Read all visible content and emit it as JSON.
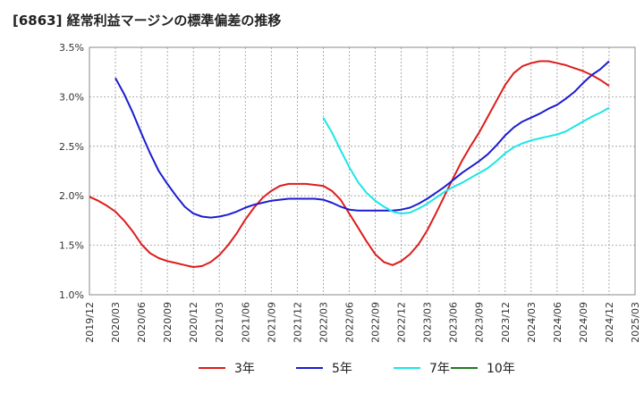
{
  "title": "[6863]  経常利益マージンの標準偏差の推移",
  "chart_data": {
    "type": "line",
    "title": "[6863]  経常利益マージンの標準偏差の推移",
    "xlabel": "",
    "ylabel": "",
    "ylim": [
      1.0,
      3.5
    ],
    "yticks": [
      "1.0%",
      "1.5%",
      "2.0%",
      "2.5%",
      "3.0%",
      "3.5%"
    ],
    "ytick_values": [
      1.0,
      1.5,
      2.0,
      2.5,
      3.0,
      3.5
    ],
    "xticks": [
      "2019/12",
      "2020/03",
      "2020/06",
      "2020/09",
      "2020/12",
      "2021/03",
      "2021/06",
      "2021/09",
      "2021/12",
      "2022/03",
      "2022/06",
      "2022/09",
      "2022/12",
      "2023/03",
      "2023/06",
      "2023/09",
      "2023/12",
      "2024/03",
      "2024/06",
      "2024/09",
      "2024/12",
      "2025/03"
    ],
    "grid": true,
    "legend_position": "bottom",
    "series": [
      {
        "name": "3年",
        "color": "#dd1c1c",
        "x": [
          "2019/12",
          "2020/01",
          "2020/02",
          "2020/03",
          "2020/04",
          "2020/05",
          "2020/06",
          "2020/07",
          "2020/08",
          "2020/09",
          "2020/10",
          "2020/11",
          "2020/12",
          "2021/01",
          "2021/02",
          "2021/03",
          "2021/04",
          "2021/05",
          "2021/06",
          "2021/07",
          "2021/08",
          "2021/09",
          "2021/10",
          "2021/11",
          "2021/12",
          "2022/01",
          "2022/02",
          "2022/03",
          "2022/04",
          "2022/05",
          "2022/06",
          "2022/07",
          "2022/08",
          "2022/09",
          "2022/10",
          "2022/11",
          "2022/12",
          "2023/01",
          "2023/02",
          "2023/03",
          "2023/04",
          "2023/05",
          "2023/06",
          "2023/07",
          "2023/08",
          "2023/09",
          "2023/10",
          "2023/11",
          "2023/12",
          "2024/01",
          "2024/02",
          "2024/03",
          "2024/04",
          "2024/05",
          "2024/06",
          "2024/07",
          "2024/08",
          "2024/09",
          "2024/10",
          "2024/11",
          "2024/12"
        ],
        "values": [
          1.99,
          1.95,
          1.9,
          1.84,
          1.75,
          1.64,
          1.51,
          1.42,
          1.37,
          1.34,
          1.32,
          1.3,
          1.28,
          1.29,
          1.33,
          1.4,
          1.5,
          1.62,
          1.76,
          1.88,
          1.98,
          2.05,
          2.1,
          2.12,
          2.12,
          2.12,
          2.11,
          2.1,
          2.05,
          1.96,
          1.82,
          1.68,
          1.54,
          1.41,
          1.33,
          1.3,
          1.34,
          1.41,
          1.51,
          1.65,
          1.82,
          2.0,
          2.18,
          2.35,
          2.5,
          2.64,
          2.8,
          2.96,
          3.12,
          3.24,
          3.31,
          3.34,
          3.36,
          3.36,
          3.34,
          3.32,
          3.29,
          3.26,
          3.22,
          3.17,
          3.11
        ]
      },
      {
        "name": "5年",
        "color": "#1c1cd0",
        "x": [
          "2020/03",
          "2020/04",
          "2020/05",
          "2020/06",
          "2020/07",
          "2020/08",
          "2020/09",
          "2020/10",
          "2020/11",
          "2020/12",
          "2021/01",
          "2021/02",
          "2021/03",
          "2021/04",
          "2021/05",
          "2021/06",
          "2021/07",
          "2021/08",
          "2021/09",
          "2021/10",
          "2021/11",
          "2021/12",
          "2022/01",
          "2022/02",
          "2022/03",
          "2022/04",
          "2022/05",
          "2022/06",
          "2022/07",
          "2022/08",
          "2022/09",
          "2022/10",
          "2022/11",
          "2022/12",
          "2023/01",
          "2023/02",
          "2023/03",
          "2023/04",
          "2023/05",
          "2023/06",
          "2023/07",
          "2023/08",
          "2023/09",
          "2023/10",
          "2023/11",
          "2023/12",
          "2024/01",
          "2024/02",
          "2024/03",
          "2024/04",
          "2024/05",
          "2024/06",
          "2024/07",
          "2024/08",
          "2024/09",
          "2024/10",
          "2024/11",
          "2024/12"
        ],
        "values": [
          3.19,
          3.03,
          2.84,
          2.63,
          2.43,
          2.25,
          2.12,
          2.0,
          1.89,
          1.82,
          1.79,
          1.78,
          1.79,
          1.81,
          1.84,
          1.88,
          1.91,
          1.93,
          1.95,
          1.96,
          1.97,
          1.97,
          1.97,
          1.97,
          1.96,
          1.93,
          1.89,
          1.86,
          1.85,
          1.85,
          1.85,
          1.85,
          1.85,
          1.86,
          1.88,
          1.92,
          1.97,
          2.03,
          2.09,
          2.16,
          2.23,
          2.29,
          2.35,
          2.42,
          2.51,
          2.61,
          2.69,
          2.75,
          2.79,
          2.83,
          2.88,
          2.92,
          2.98,
          3.05,
          3.14,
          3.22,
          3.28,
          3.36
        ]
      },
      {
        "name": "7年",
        "color": "#1ce6e6",
        "x": [
          "2022/03",
          "2022/04",
          "2022/05",
          "2022/06",
          "2022/07",
          "2022/08",
          "2022/09",
          "2022/10",
          "2022/11",
          "2022/12",
          "2023/01",
          "2023/02",
          "2023/03",
          "2023/04",
          "2023/05",
          "2023/06",
          "2023/07",
          "2023/08",
          "2023/09",
          "2023/10",
          "2023/11",
          "2023/12",
          "2024/01",
          "2024/02",
          "2024/03",
          "2024/04",
          "2024/05",
          "2024/06",
          "2024/07",
          "2024/08",
          "2024/09",
          "2024/10",
          "2024/11",
          "2024/12"
        ],
        "values": [
          2.79,
          2.64,
          2.46,
          2.29,
          2.14,
          2.03,
          1.95,
          1.89,
          1.84,
          1.82,
          1.83,
          1.87,
          1.92,
          1.98,
          2.04,
          2.09,
          2.13,
          2.18,
          2.23,
          2.28,
          2.35,
          2.43,
          2.49,
          2.53,
          2.56,
          2.58,
          2.6,
          2.62,
          2.65,
          2.7,
          2.75,
          2.8,
          2.84,
          2.89
        ]
      },
      {
        "name": "10年",
        "color": "#1f7a1f",
        "x": [],
        "values": []
      }
    ]
  }
}
